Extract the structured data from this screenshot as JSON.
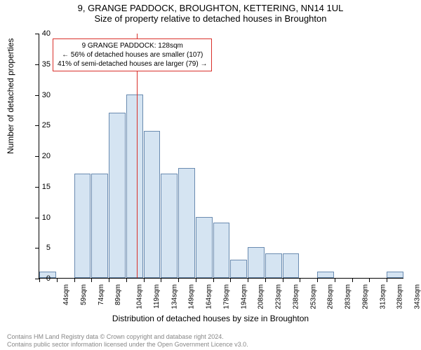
{
  "title_line1": "9, GRANGE PADDOCK, BROUGHTON, KETTERING, NN14 1UL",
  "title_line2": "Size of property relative to detached houses in Broughton",
  "y_axis_label": "Number of detached properties",
  "x_axis_label": "Distribution of detached houses by size in Broughton",
  "footer_line1": "Contains HM Land Registry data © Crown copyright and database right 2024.",
  "footer_line2": "Contains public sector information licensed under the Open Government Licence v3.0.",
  "chart": {
    "type": "histogram",
    "ylim": [
      0,
      40
    ],
    "ytick_step": 5,
    "bar_fill": "#d5e4f2",
    "bar_stroke": "#6a8bb0",
    "background_color": "#ffffff",
    "reference_line_color": "#d9302a",
    "reference_x_value": 128,
    "bin_width": 15,
    "bins": [
      {
        "label": "44sqm",
        "x": 44,
        "value": 1
      },
      {
        "label": "59sqm",
        "x": 59,
        "value": 0
      },
      {
        "label": "74sqm",
        "x": 74,
        "value": 17
      },
      {
        "label": "89sqm",
        "x": 89,
        "value": 17
      },
      {
        "label": "104sqm",
        "x": 104,
        "value": 27
      },
      {
        "label": "119sqm",
        "x": 119,
        "value": 30
      },
      {
        "label": "134sqm",
        "x": 134,
        "value": 24
      },
      {
        "label": "149sqm",
        "x": 149,
        "value": 17
      },
      {
        "label": "164sqm",
        "x": 164,
        "value": 18
      },
      {
        "label": "179sqm",
        "x": 179,
        "value": 10
      },
      {
        "label": "194sqm",
        "x": 194,
        "value": 9
      },
      {
        "label": "208sqm",
        "x": 208,
        "value": 3
      },
      {
        "label": "223sqm",
        "x": 223,
        "value": 5
      },
      {
        "label": "238sqm",
        "x": 238,
        "value": 4
      },
      {
        "label": "253sqm",
        "x": 253,
        "value": 4
      },
      {
        "label": "268sqm",
        "x": 268,
        "value": 0
      },
      {
        "label": "283sqm",
        "x": 283,
        "value": 1
      },
      {
        "label": "298sqm",
        "x": 298,
        "value": 0
      },
      {
        "label": "313sqm",
        "x": 313,
        "value": 0
      },
      {
        "label": "328sqm",
        "x": 328,
        "value": 0
      },
      {
        "label": "343sqm",
        "x": 343,
        "value": 1
      }
    ]
  },
  "annotation": {
    "line1": "9 GRANGE PADDOCK: 128sqm",
    "line2": "← 56% of detached houses are smaller (107)",
    "line3": "41% of semi-detached houses are larger (79) →",
    "border_color": "#d9302a"
  }
}
